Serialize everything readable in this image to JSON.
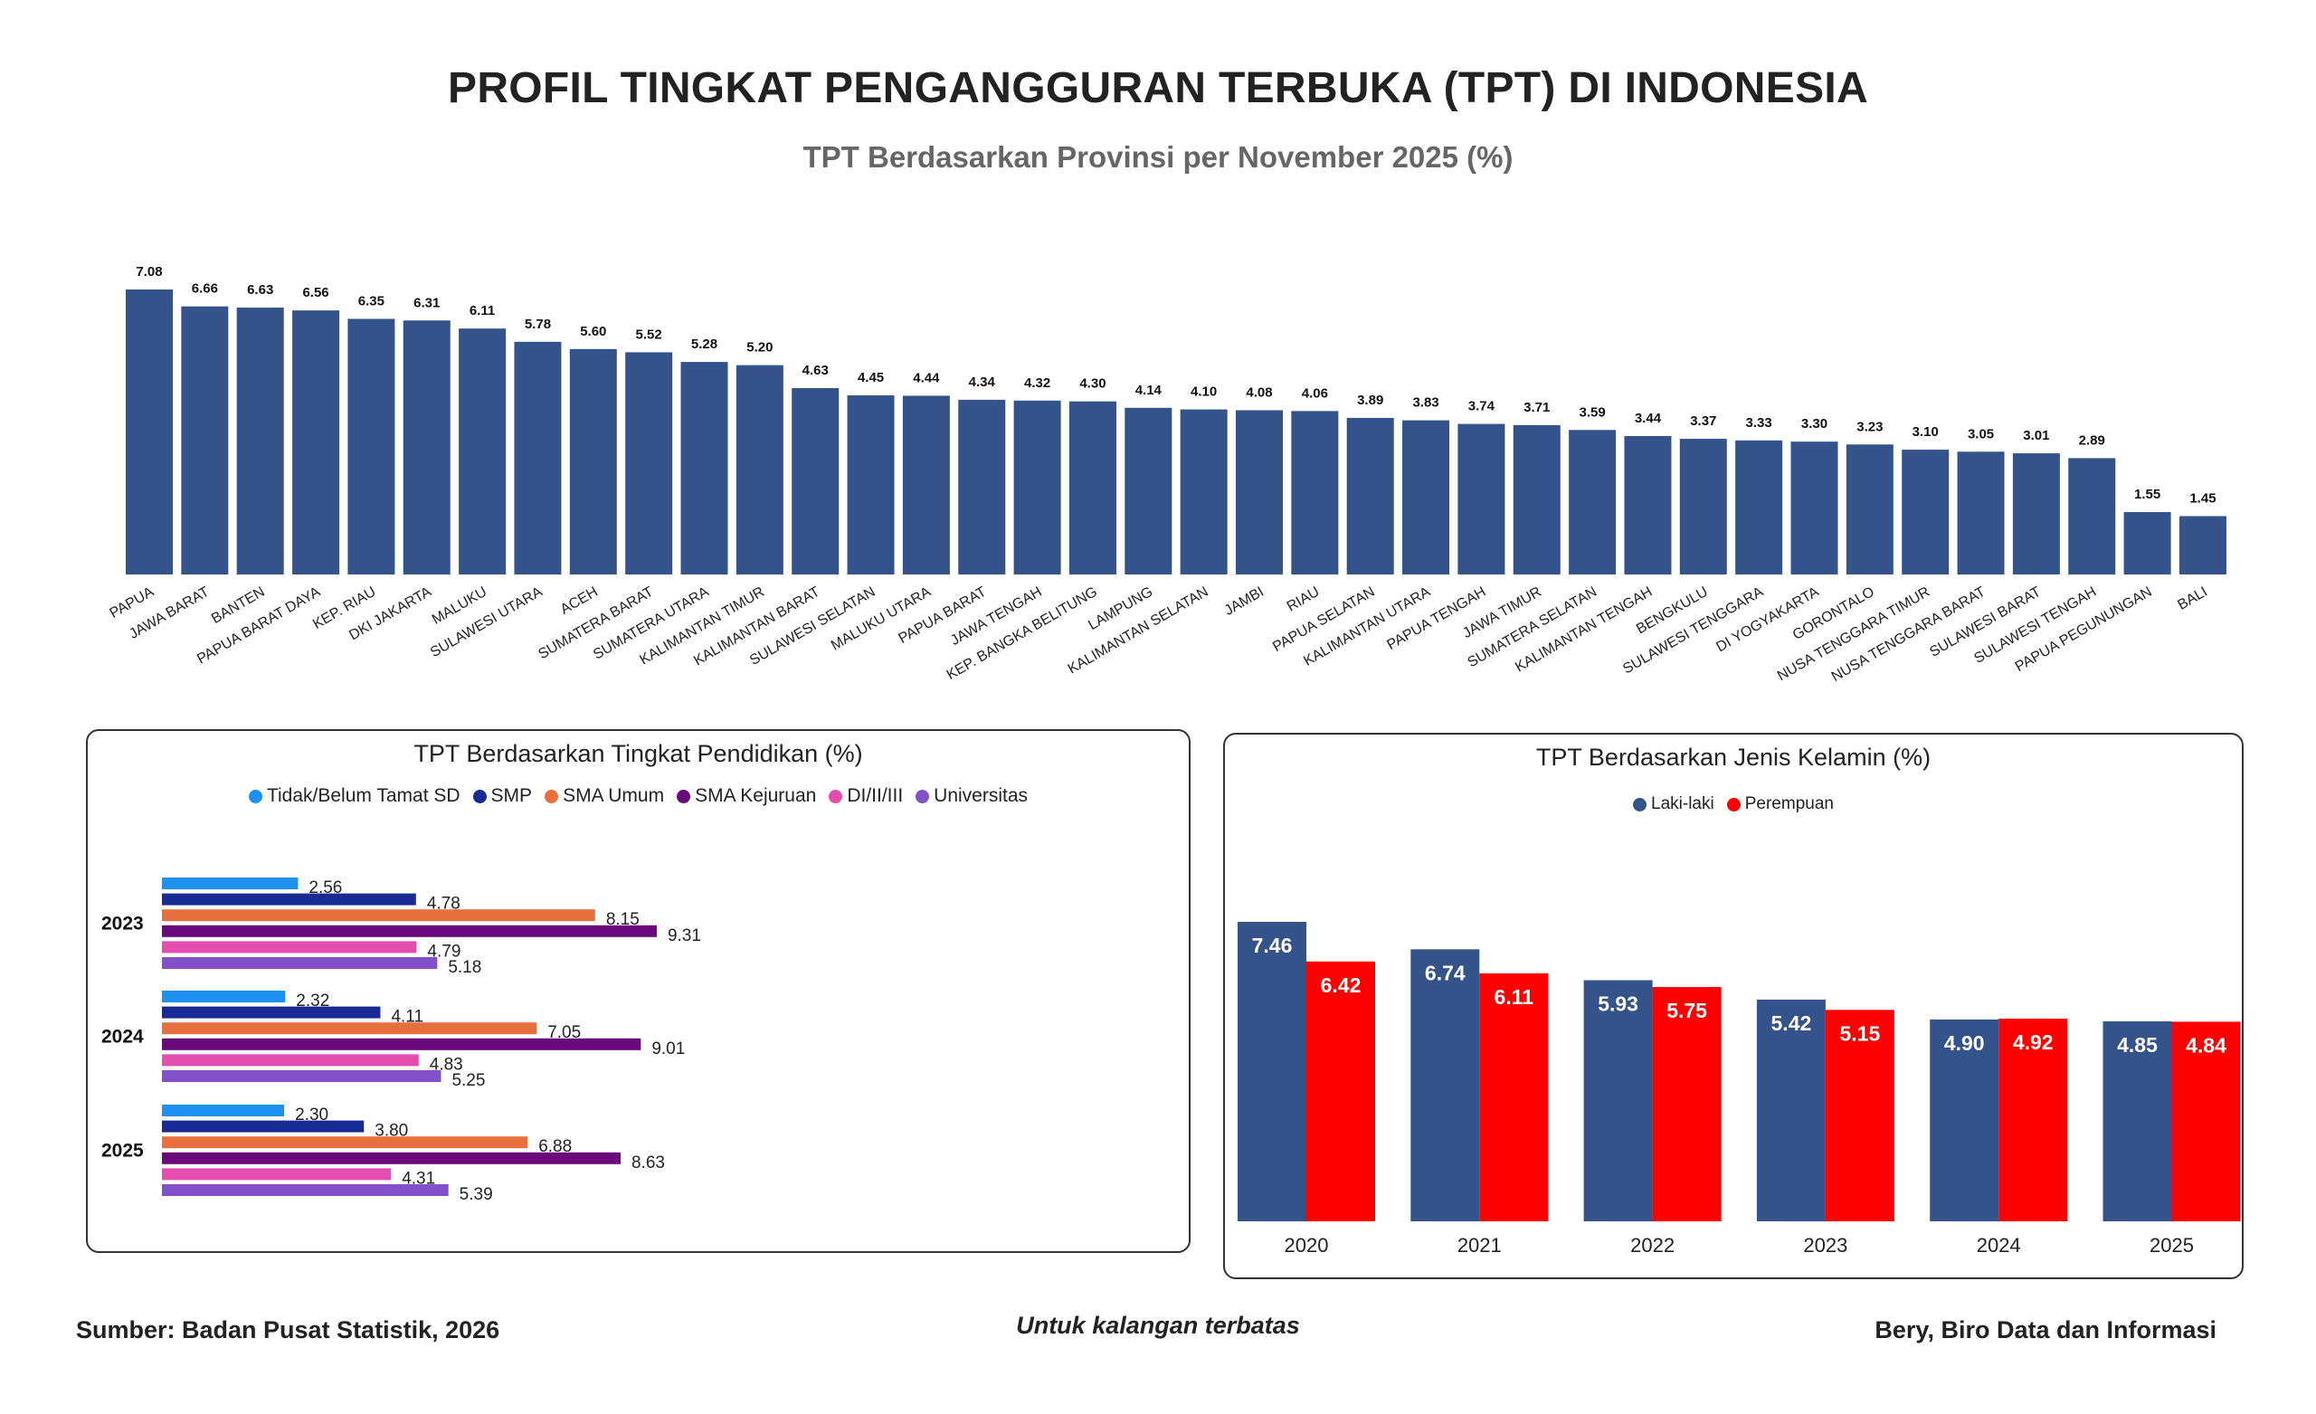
{
  "header": {
    "title": "PROFIL TINGKAT PENGANGGURAN TERBUKA (TPT) DI INDONESIA",
    "subtitle": "TPT Berdasarkan Provinsi per November 2025 (%)"
  },
  "colors": {
    "navy": "#34538A",
    "red": "#FF0000"
  },
  "chart_data": [
    {
      "type": "bar",
      "title": "TPT Berdasarkan Provinsi per November 2025 (%)",
      "categories": [
        "PAPUA",
        "JAWA BARAT",
        "BANTEN",
        "PAPUA BARAT DAYA",
        "KEP. RIAU",
        "DKI JAKARTA",
        "MALUKU",
        "SULAWESI UTARA",
        "ACEH",
        "SUMATERA BARAT",
        "SUMATERA UTARA",
        "KALIMANTAN TIMUR",
        "KALIMANTAN BARAT",
        "SULAWESI SELATAN",
        "MALUKU UTARA",
        "PAPUA BARAT",
        "JAWA TENGAH",
        "KEP. BANGKA BELITUNG",
        "LAMPUNG",
        "KALIMANTAN SELATAN",
        "JAMBI",
        "RIAU",
        "PAPUA SELATAN",
        "KALIMANTAN UTARA",
        "PAPUA TENGAH",
        "JAWA TIMUR",
        "SUMATERA SELATAN",
        "KALIMANTAN TENGAH",
        "BENGKULU",
        "SULAWESI TENGGARA",
        "DI YOGYAKARTA",
        "GORONTALO",
        "NUSA TENGGARA TIMUR",
        "NUSA TENGGARA BARAT",
        "SULAWESI BARAT",
        "SULAWESI TENGAH",
        "PAPUA PEGUNUNGAN",
        "BALI"
      ],
      "values": [
        7.08,
        6.66,
        6.63,
        6.56,
        6.35,
        6.31,
        6.11,
        5.78,
        5.6,
        5.52,
        5.28,
        5.2,
        4.63,
        4.45,
        4.44,
        4.34,
        4.32,
        4.3,
        4.14,
        4.1,
        4.08,
        4.06,
        3.89,
        3.83,
        3.74,
        3.71,
        3.59,
        3.44,
        3.37,
        3.33,
        3.3,
        3.23,
        3.1,
        3.05,
        3.01,
        2.89,
        1.55,
        1.45
      ],
      "labels": [
        "7.08",
        "6.66",
        "6.63",
        "6.56",
        "6.35",
        "6.31",
        "6.11",
        "5.78",
        "5.60",
        "5.52",
        "5.28",
        "5.20",
        "4.63",
        "4.45",
        "4.44",
        "4.34",
        "4.32",
        "4.30",
        "4.14",
        "4.10",
        "4.08",
        "4.06",
        "3.89",
        "3.83",
        "3.74",
        "3.71",
        "3.59",
        "3.44",
        "3.37",
        "3.33",
        "3.30",
        "3.23",
        "3.10",
        "3.05",
        "3.01",
        "2.89",
        "1.55",
        "1.45"
      ],
      "xlabel": "",
      "ylabel": "",
      "ylim": [
        0,
        7.08
      ],
      "grid": false
    },
    {
      "type": "bar",
      "orientation": "horizontal",
      "title": "TPT Berdasarkan Tingkat Pendidikan (%)",
      "categories": [
        "2023",
        "2024",
        "2025"
      ],
      "series": [
        {
          "name": "Tidak/Belum Tamat SD",
          "color": "#1E90F0",
          "values": [
            2.56,
            2.32,
            2.3
          ],
          "labels": [
            "2.56",
            "2.32",
            "2.30"
          ]
        },
        {
          "name": "SMP",
          "color": "#1A2A94",
          "values": [
            4.78,
            4.11,
            3.8
          ],
          "labels": [
            "4.78",
            "4.11",
            "3.80"
          ]
        },
        {
          "name": "SMA Umum",
          "color": "#E8703E",
          "values": [
            8.15,
            7.05,
            6.88
          ],
          "labels": [
            "8.15",
            "7.05",
            "6.88"
          ]
        },
        {
          "name": "SMA Kejuruan",
          "color": "#6A0A7A",
          "values": [
            9.31,
            9.01,
            8.63
          ],
          "labels": [
            "9.31",
            "9.01",
            "8.63"
          ]
        },
        {
          "name": "DI/II/III",
          "color": "#E24DAE",
          "values": [
            4.79,
            4.83,
            4.31
          ],
          "labels": [
            "4.79",
            "4.83",
            "4.31"
          ]
        },
        {
          "name": "Universitas",
          "color": "#8250C8",
          "values": [
            5.18,
            5.25,
            5.39
          ],
          "labels": [
            "5.18",
            "5.25",
            "5.39"
          ]
        }
      ],
      "legend": "top",
      "xlim": [
        0,
        10
      ]
    },
    {
      "type": "bar",
      "title": "TPT Berdasarkan Jenis Kelamin (%)",
      "categories": [
        "2020",
        "2021",
        "2022",
        "2023",
        "2024",
        "2025"
      ],
      "series": [
        {
          "name": "Laki-laki",
          "color": "#34538A",
          "values": [
            7.46,
            6.74,
            5.93,
            5.42,
            4.9,
            4.85
          ],
          "labels": [
            "7.46",
            "6.74",
            "5.93",
            "5.42",
            "4.90",
            "4.85"
          ]
        },
        {
          "name": "Perempuan",
          "color": "#FF0000",
          "values": [
            6.42,
            6.11,
            5.75,
            5.15,
            4.92,
            4.84
          ],
          "labels": [
            "6.42",
            "6.11",
            "5.75",
            "5.15",
            "4.92",
            "4.84"
          ]
        }
      ],
      "legend": "top",
      "ylim": [
        2.5,
        7.46
      ]
    }
  ],
  "footer": {
    "source": "Sumber: Badan Pusat Statistik, 2026",
    "note": "Untuk kalangan terbatas",
    "author": "Bery, Biro Data dan Informasi"
  }
}
